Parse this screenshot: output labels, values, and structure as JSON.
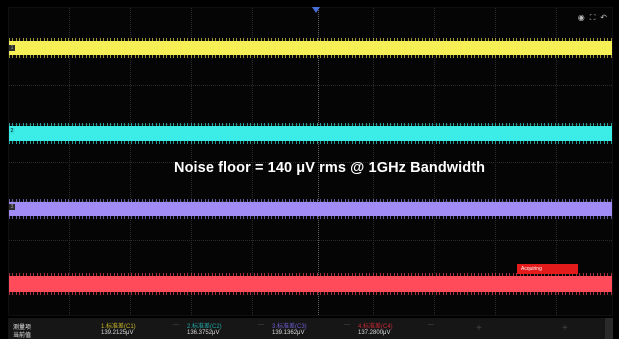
{
  "annotation": "Noise floor = 140 μV rms @ 1GHz Bandwidth",
  "status": "Acquiring",
  "top_icons": [
    "camera-icon",
    "fullscreen-icon",
    "undo-icon"
  ],
  "markers": {
    "ch1": "1",
    "ch2": "2",
    "ch3": "3"
  },
  "traces": [
    {
      "channel": "C1",
      "color": "#f6ef55"
    },
    {
      "channel": "C2",
      "color": "#3cece6"
    },
    {
      "channel": "C3",
      "color": "#a18cf5"
    },
    {
      "channel": "C4",
      "color": "#ff4b5a"
    }
  ],
  "measure": {
    "row_label": "测量项",
    "value_label": "当前值",
    "columns": [
      {
        "label": "1.标准差(C1)",
        "value": "139.2125μV"
      },
      {
        "label": "2.标准差(C2)",
        "value": "136.3752μV"
      },
      {
        "label": "3.标准差(C3)",
        "value": "139.1362μV"
      },
      {
        "label": "4.标准差(C4)",
        "value": "137.2800μV"
      }
    ]
  }
}
